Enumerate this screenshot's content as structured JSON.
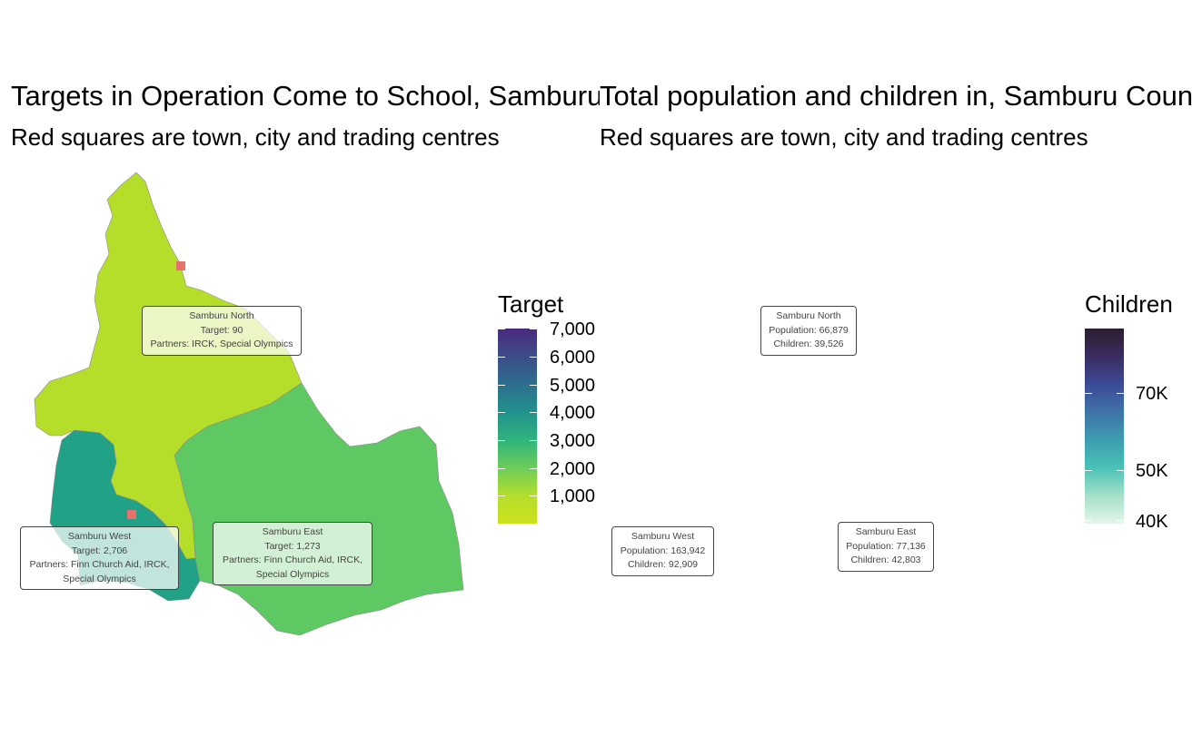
{
  "left_map": {
    "title": "Targets in Operation Come to School, Samburu County",
    "subtitle": "Red squares are town, city and trading centres",
    "legend": {
      "title": "Target",
      "ticks": [
        "7,000",
        "6,000",
        "5,000",
        "4,000",
        "3,000",
        "2,000",
        "1,000"
      ],
      "colors": [
        "#4a2a7e",
        "#3d4d8a",
        "#2d6e8e",
        "#21918c",
        "#2fb47c",
        "#6dcd59",
        "#b4de2c",
        "#cde11d"
      ]
    },
    "regions": [
      {
        "name": "Samburu North",
        "fill": "#b5de2b",
        "lines": [
          "Samburu North",
          "Target: 90",
          "Partners: IRCK, Special Olympics"
        ]
      },
      {
        "name": "Samburu West",
        "fill": "#21a286",
        "lines": [
          "Samburu West",
          "Target: 2,706",
          "Partners: Finn Church Aid, IRCK,",
          "Special Olympics"
        ]
      },
      {
        "name": "Samburu East",
        "fill": "#5ec962",
        "lines": [
          "Samburu East",
          "Target: 1,273",
          "Partners: Finn Church Aid, IRCK,",
          "Special Olympics"
        ]
      }
    ]
  },
  "right_map": {
    "title": "Total population and children in, Samburu County",
    "subtitle": "Red squares are town, city and trading centres",
    "legend": {
      "title": "Children",
      "ticks": [
        "70K",
        "50K",
        "40K"
      ],
      "colors": [
        "#2b1e2e",
        "#3a2c5f",
        "#3b4b97",
        "#3f73a8",
        "#3d9db0",
        "#49c2b6",
        "#a5e0c8",
        "#e4f5ea"
      ]
    },
    "regions": [
      {
        "name": "Samburu North",
        "fill": "#ddf4e8",
        "lines": [
          "Samburu North",
          "Population: 66,879",
          "Children: 39,526"
        ]
      },
      {
        "name": "Samburu West",
        "fill": "#2b1d2f",
        "lines": [
          "Samburu West",
          "Population: 163,942",
          "Children: 92,909"
        ]
      },
      {
        "name": "Samburu East",
        "fill": "#b3e5c5",
        "lines": [
          "Samburu East",
          "Population: 77,136",
          "Children: 42,803"
        ]
      }
    ]
  },
  "town_marker_color": "#e8716b"
}
